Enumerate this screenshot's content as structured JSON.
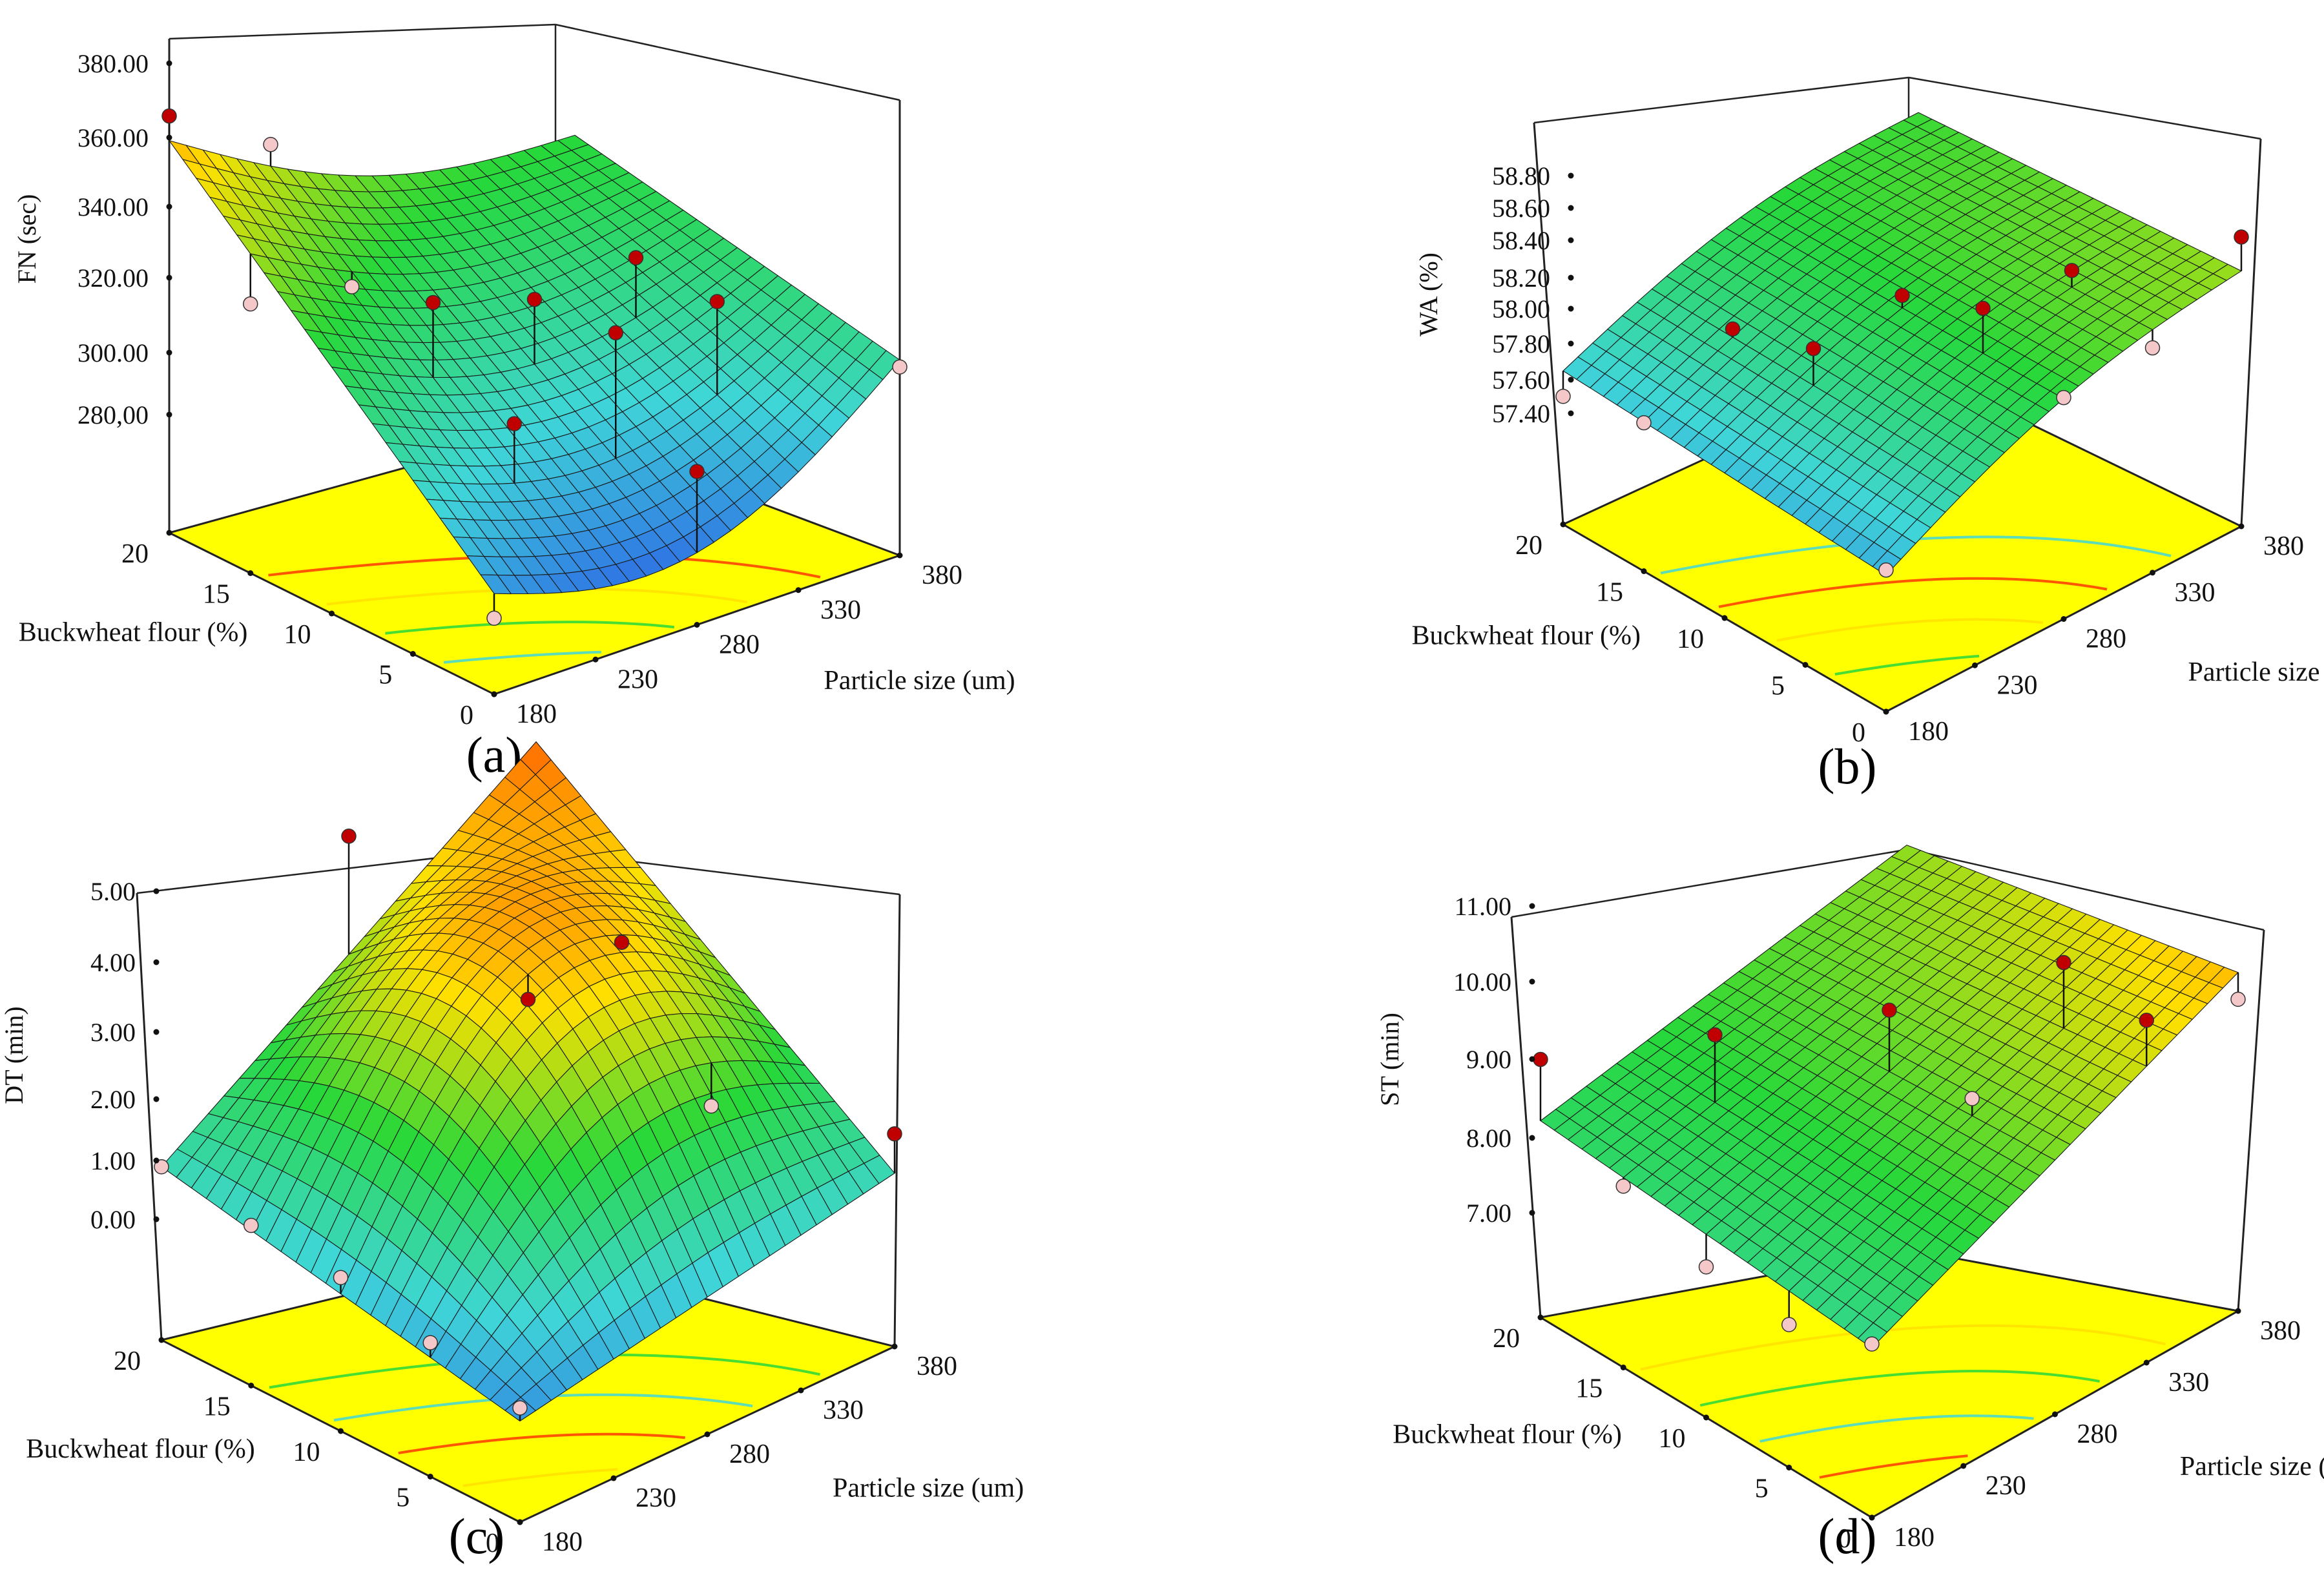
{
  "figure": {
    "panels": [
      "a",
      "b",
      "c",
      "d"
    ]
  },
  "colors": {
    "floor": "#ffff00",
    "low": "#2c5fe6",
    "mid_low": "#3fd6d8",
    "mid": "#27d83a",
    "mid_high": "#ffe000",
    "high": "#ff3a00",
    "point_above": "#c00000",
    "point_below": "#f4c8c8",
    "box_line": "#222222"
  },
  "chart_data": [
    {
      "type": "surface3d",
      "panel_label": "(a)",
      "zlabel": "FN (sec)",
      "xlabel": "Buckwheat flour (%)",
      "ylabel": "Particle size (um)",
      "x_ticks": [
        "0",
        "5",
        "10",
        "15",
        "20"
      ],
      "y_ticks": [
        "180",
        "230",
        "280",
        "330",
        "380"
      ],
      "z_ticks": [
        "280,00",
        "300.00",
        "320.00",
        "340.00",
        "360.00",
        "380.00"
      ],
      "zlim": [
        260,
        380
      ],
      "xlim": [
        0,
        20
      ],
      "ylim": [
        180,
        380
      ],
      "corner_values": {
        "b0_p180": 275,
        "b20_p180": 358,
        "b0_p380": 302,
        "b20_p380": 320
      },
      "points": [
        {
          "buckwheat": 20,
          "particle": 180,
          "fn": 365,
          "above": true
        },
        {
          "buckwheat": 20,
          "particle": 230,
          "fn": 347,
          "above": false
        },
        {
          "buckwheat": 15,
          "particle": 180,
          "fn": 323,
          "above": false
        },
        {
          "buckwheat": 15,
          "particle": 230,
          "fn": 318,
          "above": false
        },
        {
          "buckwheat": 10,
          "particle": 230,
          "fn": 325,
          "above": true
        },
        {
          "buckwheat": 10,
          "particle": 280,
          "fn": 316,
          "above": true
        },
        {
          "buckwheat": 10,
          "particle": 330,
          "fn": 318,
          "above": true
        },
        {
          "buckwheat": 5,
          "particle": 280,
          "fn": 318,
          "above": true
        },
        {
          "buckwheat": 5,
          "particle": 330,
          "fn": 317,
          "above": true
        },
        {
          "buckwheat": 5,
          "particle": 230,
          "fn": 302,
          "above": true
        },
        {
          "buckwheat": 0,
          "particle": 280,
          "fn": 290,
          "above": true
        },
        {
          "buckwheat": 0,
          "particle": 380,
          "fn": 300,
          "above": false
        },
        {
          "buckwheat": 0,
          "particle": 180,
          "fn": 268,
          "above": false
        }
      ]
    },
    {
      "type": "surface3d",
      "panel_label": "(b)",
      "zlabel": "WA (%)",
      "xlabel": "Buckwheat flour (%)",
      "ylabel": "Particle size (um)",
      "x_ticks": [
        "0",
        "5",
        "10",
        "15",
        "20"
      ],
      "y_ticks": [
        "180",
        "230",
        "280",
        "330",
        "380"
      ],
      "z_ticks": [
        "57.40",
        "57.60",
        "57.80",
        "58.00",
        "58.20",
        "58.40",
        "58.60",
        "58.80"
      ],
      "zlim": [
        57.3,
        58.8
      ],
      "xlim": [
        0,
        20
      ],
      "ylim": [
        180,
        380
      ],
      "corner_values": {
        "b0_p180": 57.55,
        "b20_p180": 57.65,
        "b0_p380": 58.25,
        "b20_p380": 58.08
      },
      "points": [
        {
          "buckwheat": 20,
          "particle": 180,
          "wa": 57.5,
          "above": false
        },
        {
          "buckwheat": 15,
          "particle": 180,
          "wa": 57.62,
          "above": false
        },
        {
          "buckwheat": 15,
          "particle": 230,
          "wa": 57.9,
          "above": true
        },
        {
          "buckwheat": 10,
          "particle": 230,
          "wa": 58.06,
          "above": true
        },
        {
          "buckwheat": 10,
          "particle": 280,
          "wa": 58.1,
          "above": true
        },
        {
          "buckwheat": 5,
          "particle": 280,
          "wa": 58.3,
          "above": true
        },
        {
          "buckwheat": 5,
          "particle": 330,
          "wa": 58.25,
          "above": true
        },
        {
          "buckwheat": 0,
          "particle": 180,
          "wa": 57.58,
          "above": false
        },
        {
          "buckwheat": 0,
          "particle": 280,
          "wa": 58.05,
          "above": false
        },
        {
          "buckwheat": 0,
          "particle": 330,
          "wa": 58.07,
          "above": false
        },
        {
          "buckwheat": 0,
          "particle": 380,
          "wa": 58.45,
          "above": true
        }
      ]
    },
    {
      "type": "surface3d",
      "panel_label": "(c)",
      "zlabel": "DT  (min)",
      "xlabel": "Buckwheat flour (%)",
      "ylabel": "Particle size (um)",
      "x_ticks": [
        "0",
        "5",
        "10",
        "15",
        "20"
      ],
      "y_ticks": [
        "180",
        "230",
        "280",
        "330",
        "380"
      ],
      "z_ticks": [
        "0.00",
        "1.00",
        "2.00",
        "3.00",
        "4.00",
        "5.00"
      ],
      "zlim": [
        -1,
        5
      ],
      "xlim": [
        0,
        20
      ],
      "ylim": [
        180,
        380
      ],
      "corner_values": {
        "b0_p180": -0.3,
        "b20_p180": 0.8,
        "b0_p380": 0.8,
        "b20_p380": 4.6
      },
      "points": [
        {
          "buckwheat": 20,
          "particle": 180,
          "dt": 0.8,
          "above": false
        },
        {
          "buckwheat": 20,
          "particle": 280,
          "dt": 4.5,
          "above": true
        },
        {
          "buckwheat": 15,
          "particle": 180,
          "dt": 0.6,
          "above": false
        },
        {
          "buckwheat": 10,
          "particle": 180,
          "dt": 0.5,
          "above": false
        },
        {
          "buckwheat": 10,
          "particle": 280,
          "dt": 3.4,
          "above": true
        },
        {
          "buckwheat": 10,
          "particle": 330,
          "dt": 3.6,
          "above": true
        },
        {
          "buckwheat": 5,
          "particle": 180,
          "dt": 0.2,
          "above": false
        },
        {
          "buckwheat": 5,
          "particle": 330,
          "dt": 1.8,
          "above": false
        },
        {
          "buckwheat": 0,
          "particle": 380,
          "dt": 1.4,
          "above": true
        },
        {
          "buckwheat": 0,
          "particle": 180,
          "dt": -0.1,
          "above": false
        }
      ]
    },
    {
      "type": "surface3d",
      "panel_label": "(d)",
      "zlabel": "ST (min)",
      "xlabel": "Buckwheat flour (%)",
      "ylabel": "Particle size (um)",
      "x_ticks": [
        "0",
        "5",
        "10",
        "15",
        "20"
      ],
      "y_ticks": [
        "180",
        "230",
        "280",
        "330",
        "380"
      ],
      "z_ticks": [
        "7.00",
        "8.00",
        "9.00",
        "10.00",
        "11.00"
      ],
      "zlim": [
        6,
        11
      ],
      "xlim": [
        0,
        20
      ],
      "ylim": [
        180,
        380
      ],
      "corner_values": {
        "b0_p180": 7.85,
        "b20_p180": 8.2,
        "b0_p380": 10.05,
        "b20_p380": 9.1
      },
      "points": [
        {
          "buckwheat": 20,
          "particle": 180,
          "st": 9.0,
          "above": true
        },
        {
          "buckwheat": 15,
          "particle": 180,
          "st": 8.0,
          "above": false
        },
        {
          "buckwheat": 15,
          "particle": 230,
          "st": 9.3,
          "above": true
        },
        {
          "buckwheat": 10,
          "particle": 180,
          "st": 7.6,
          "above": false
        },
        {
          "buckwheat": 10,
          "particle": 280,
          "st": 9.6,
          "above": true
        },
        {
          "buckwheat": 5,
          "particle": 180,
          "st": 7.5,
          "above": false
        },
        {
          "buckwheat": 5,
          "particle": 330,
          "st": 10.2,
          "above": true
        },
        {
          "buckwheat": 5,
          "particle": 280,
          "st": 9.1,
          "above": false
        },
        {
          "buckwheat": 0,
          "particle": 180,
          "st": 7.9,
          "above": false
        },
        {
          "buckwheat": 0,
          "particle": 330,
          "st": 10.1,
          "above": true
        },
        {
          "buckwheat": 0,
          "particle": 380,
          "st": 9.7,
          "above": false
        }
      ]
    }
  ]
}
